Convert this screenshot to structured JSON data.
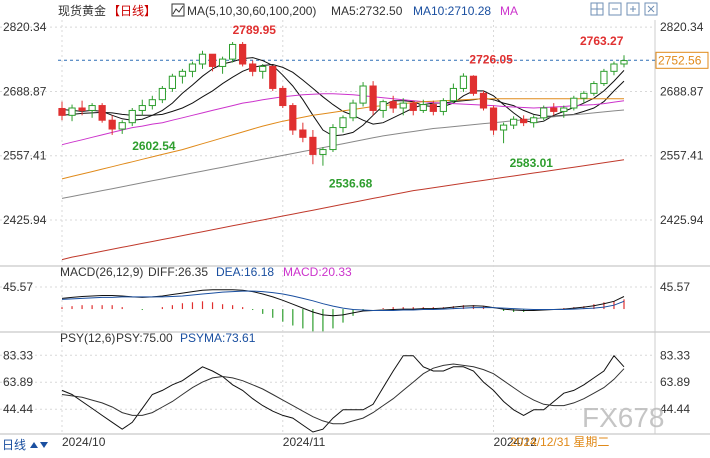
{
  "header": {
    "instrument": "现货黄金",
    "period_tag": "【日线】",
    "ma_label": "MA(5,10,30,60,100,200)",
    "ma5": "MA5:2732.50",
    "ma10": "MA10:2710.28",
    "ma_more": "MA"
  },
  "toolbar": {
    "icons": [
      "grid-icon",
      "minus-box-icon",
      "plus-box-icon",
      "close-box-icon"
    ]
  },
  "macd_header": {
    "label": "MACD(26,12,9)",
    "diff": "DIFF:26.35",
    "dea": "DEA:16.18",
    "macd": "MACD:20.33"
  },
  "psy_header": {
    "label": "PSY(12,6)",
    "psy": "PSY:75.00",
    "psyma": "PSYMA:73.61"
  },
  "bottom": {
    "period": "日线",
    "date_tag": "2024/12/31 星期二",
    "watermark": "FX678"
  },
  "colors": {
    "up": "#2e9e2e",
    "down": "#e03030",
    "ma5": "#111111",
    "ma10": "#111111",
    "ma30": "#cc33cc",
    "ma60": "#e08a1a",
    "ma100": "#888888",
    "ma200": "#c0392b",
    "grid": "#d8d8d8",
    "text": "#333333",
    "accent": "#cc0000",
    "purple": "#cc33cc",
    "blue": "#1a4fa0"
  },
  "chart_data": [
    {
      "type": "candlestick",
      "title": "现货黄金【日线】",
      "y_ticks": [
        "2820.34",
        "2688.87",
        "2557.41",
        "2425.94"
      ],
      "y_range": [
        2340,
        2835
      ],
      "x_ticks": [
        "2024/10",
        "2024/11",
        "2024/12"
      ],
      "current_price": "2752.56",
      "annotations": [
        {
          "label": "2789.95",
          "type": "high"
        },
        {
          "label": "2602.54",
          "type": "low"
        },
        {
          "label": "2536.68",
          "type": "low"
        },
        {
          "label": "2726.05",
          "type": "high"
        },
        {
          "label": "2583.01",
          "type": "low"
        },
        {
          "label": "2763.27",
          "type": "high"
        }
      ],
      "candles": [
        [
          2654,
          2668,
          2630,
          2640
        ],
        [
          2640,
          2662,
          2628,
          2655
        ],
        [
          2655,
          2670,
          2640,
          2650
        ],
        [
          2650,
          2665,
          2635,
          2660
        ],
        [
          2660,
          2665,
          2625,
          2630
        ],
        [
          2630,
          2640,
          2600,
          2612
        ],
        [
          2612,
          2630,
          2602,
          2625
        ],
        [
          2625,
          2655,
          2618,
          2650
        ],
        [
          2650,
          2672,
          2640,
          2660
        ],
        [
          2660,
          2680,
          2652,
          2672
        ],
        [
          2672,
          2700,
          2665,
          2695
        ],
        [
          2695,
          2725,
          2688,
          2720
        ],
        [
          2720,
          2735,
          2705,
          2730
        ],
        [
          2730,
          2750,
          2718,
          2745
        ],
        [
          2745,
          2772,
          2735,
          2765
        ],
        [
          2765,
          2762,
          2730,
          2740
        ],
        [
          2740,
          2760,
          2725,
          2755
        ],
        [
          2755,
          2790,
          2748,
          2785
        ],
        [
          2785,
          2790,
          2740,
          2745
        ],
        [
          2745,
          2752,
          2720,
          2730
        ],
        [
          2730,
          2745,
          2715,
          2740
        ],
        [
          2740,
          2742,
          2690,
          2695
        ],
        [
          2695,
          2700,
          2655,
          2660
        ],
        [
          2660,
          2665,
          2600,
          2610
        ],
        [
          2610,
          2625,
          2585,
          2595
        ],
        [
          2595,
          2610,
          2540,
          2560
        ],
        [
          2560,
          2575,
          2537,
          2570
        ],
        [
          2570,
          2622,
          2565,
          2615
        ],
        [
          2615,
          2640,
          2605,
          2635
        ],
        [
          2635,
          2672,
          2628,
          2665
        ],
        [
          2665,
          2708,
          2658,
          2700
        ],
        [
          2700,
          2710,
          2640,
          2650
        ],
        [
          2650,
          2672,
          2635,
          2668
        ],
        [
          2668,
          2680,
          2645,
          2655
        ],
        [
          2655,
          2675,
          2640,
          2665
        ],
        [
          2665,
          2670,
          2640,
          2650
        ],
        [
          2650,
          2672,
          2645,
          2662
        ],
        [
          2662,
          2670,
          2640,
          2648
        ],
        [
          2648,
          2675,
          2640,
          2670
        ],
        [
          2670,
          2705,
          2665,
          2695
        ],
        [
          2695,
          2726,
          2688,
          2720
        ],
        [
          2720,
          2722,
          2680,
          2685
        ],
        [
          2685,
          2690,
          2650,
          2655
        ],
        [
          2655,
          2660,
          2600,
          2610
        ],
        [
          2610,
          2625,
          2583,
          2620
        ],
        [
          2620,
          2638,
          2612,
          2632
        ],
        [
          2632,
          2640,
          2618,
          2625
        ],
        [
          2625,
          2640,
          2615,
          2635
        ],
        [
          2635,
          2660,
          2630,
          2655
        ],
        [
          2655,
          2665,
          2640,
          2648
        ],
        [
          2648,
          2660,
          2635,
          2655
        ],
        [
          2655,
          2680,
          2650,
          2675
        ],
        [
          2675,
          2690,
          2665,
          2685
        ],
        [
          2685,
          2710,
          2680,
          2705
        ],
        [
          2705,
          2735,
          2700,
          2730
        ],
        [
          2730,
          2750,
          2722,
          2745
        ],
        [
          2745,
          2763,
          2738,
          2752
        ]
      ],
      "ma_series": [
        {
          "name": "MA5",
          "values": [
            2652,
            2650,
            2648,
            2650,
            2648,
            2640,
            2633,
            2630,
            2632,
            2640,
            2650,
            2665,
            2685,
            2702,
            2720,
            2735,
            2745,
            2750,
            2756,
            2758,
            2752,
            2742,
            2722,
            2700,
            2672,
            2640,
            2610,
            2598,
            2600,
            2605,
            2620,
            2640,
            2660,
            2670,
            2670,
            2668,
            2660,
            2658,
            2658,
            2665,
            2680,
            2690,
            2690,
            2680,
            2662,
            2645,
            2630,
            2625,
            2628,
            2640,
            2648,
            2656,
            2665,
            2675,
            2690,
            2710,
            2732
          ]
        },
        {
          "name": "MA10",
          "values": [
            2640,
            2642,
            2644,
            2645,
            2646,
            2645,
            2642,
            2640,
            2640,
            2640,
            2642,
            2648,
            2655,
            2665,
            2678,
            2690,
            2705,
            2718,
            2730,
            2738,
            2742,
            2744,
            2738,
            2728,
            2712,
            2695,
            2678,
            2662,
            2648,
            2640,
            2630,
            2622,
            2625,
            2635,
            2645,
            2655,
            2662,
            2665,
            2665,
            2668,
            2670,
            2672,
            2675,
            2672,
            2665,
            2660,
            2650,
            2642,
            2638,
            2638,
            2640,
            2642,
            2648,
            2655,
            2668,
            2690,
            2710
          ]
        },
        {
          "name": "MA30",
          "values": [
            2580,
            2585,
            2590,
            2595,
            2600,
            2605,
            2610,
            2615,
            2618,
            2622,
            2625,
            2630,
            2635,
            2640,
            2645,
            2650,
            2655,
            2660,
            2665,
            2668,
            2672,
            2675,
            2678,
            2680,
            2682,
            2683,
            2684,
            2684,
            2683,
            2682,
            2680,
            2678,
            2676,
            2674,
            2672,
            2670,
            2668,
            2666,
            2665,
            2664,
            2663,
            2662,
            2661,
            2660,
            2658,
            2657,
            2656,
            2655,
            2656,
            2657,
            2658,
            2660,
            2661,
            2662,
            2664,
            2667,
            2670
          ]
        },
        {
          "name": "MA60",
          "values": [
            2510,
            2515,
            2520,
            2525,
            2530,
            2535,
            2540,
            2545,
            2550,
            2555,
            2560,
            2565,
            2570,
            2576,
            2582,
            2588,
            2594,
            2600,
            2606,
            2612,
            2618,
            2623,
            2628,
            2632,
            2636,
            2640,
            2643,
            2646,
            2649,
            2652,
            2655,
            2658,
            2660,
            2662,
            2664,
            2666,
            2668,
            2669,
            2670,
            2671,
            2672,
            2673,
            2674,
            2674,
            2674,
            2674,
            2674,
            2674,
            2674,
            2674,
            2674,
            2674,
            2674,
            2674,
            2674,
            2674,
            2674
          ]
        },
        {
          "name": "MA100",
          "values": [
            2470,
            2474,
            2478,
            2482,
            2486,
            2490,
            2494,
            2498,
            2502,
            2506,
            2510,
            2514,
            2518,
            2522,
            2526,
            2530,
            2534,
            2538,
            2542,
            2546,
            2550,
            2554,
            2558,
            2562,
            2566,
            2570,
            2574,
            2578,
            2582,
            2586,
            2590,
            2594,
            2598,
            2601,
            2604,
            2607,
            2610,
            2613,
            2615,
            2617,
            2619,
            2621,
            2623,
            2625,
            2627,
            2629,
            2631,
            2633,
            2635,
            2637,
            2639,
            2641,
            2643,
            2645,
            2647,
            2649,
            2651
          ]
        },
        {
          "name": "MA200",
          "values": [
            2345,
            2350,
            2354,
            2358,
            2362,
            2366,
            2370,
            2374,
            2378,
            2382,
            2386,
            2390,
            2394,
            2398,
            2402,
            2406,
            2410,
            2414,
            2418,
            2422,
            2426,
            2430,
            2434,
            2438,
            2442,
            2446,
            2450,
            2454,
            2458,
            2462,
            2466,
            2470,
            2474,
            2478,
            2482,
            2486,
            2489,
            2492,
            2495,
            2498,
            2501,
            2504,
            2507,
            2510,
            2513,
            2516,
            2519,
            2522,
            2525,
            2528,
            2531,
            2534,
            2537,
            2540,
            2543,
            2546,
            2549
          ]
        }
      ]
    },
    {
      "type": "macd",
      "title": "MACD(26,12,9)",
      "y_ticks": [
        "45.57"
      ],
      "y_range": [
        -35,
        60
      ],
      "diff": [
        22,
        24,
        26,
        27,
        28,
        28,
        27,
        25,
        24,
        25,
        27,
        30,
        33,
        36,
        39,
        40,
        40,
        40,
        39,
        36,
        31,
        25,
        18,
        10,
        2,
        -6,
        -12,
        -14,
        -12,
        -8,
        -4,
        -3,
        -2,
        -1,
        0,
        0,
        1,
        1,
        2,
        4,
        6,
        7,
        6,
        3,
        0,
        -2,
        -3,
        -3,
        -2,
        -1,
        0,
        2,
        4,
        7,
        11,
        16,
        26
      ],
      "dea": [
        20,
        21,
        22,
        23,
        24,
        24,
        25,
        25,
        25,
        25,
        25,
        26,
        27,
        29,
        31,
        33,
        35,
        36,
        37,
        37,
        36,
        34,
        31,
        27,
        22,
        17,
        11,
        6,
        2,
        -1,
        -2,
        -3,
        -3,
        -3,
        -2,
        -2,
        -1,
        -1,
        0,
        1,
        2,
        3,
        3,
        3,
        2,
        1,
        0,
        -1,
        -1,
        -1,
        -1,
        0,
        1,
        2,
        4,
        8,
        16
      ],
      "macd": [
        4,
        6,
        8,
        8,
        8,
        8,
        4,
        0,
        -2,
        0,
        4,
        8,
        12,
        14,
        16,
        14,
        10,
        8,
        4,
        -2,
        -10,
        -18,
        -26,
        -34,
        -40,
        -46,
        -46,
        -40,
        -28,
        -14,
        -4,
        0,
        2,
        4,
        4,
        4,
        4,
        4,
        4,
        6,
        8,
        8,
        6,
        0,
        -4,
        -6,
        -6,
        -4,
        -2,
        0,
        2,
        4,
        6,
        10,
        14,
        16,
        20
      ]
    },
    {
      "type": "line",
      "title": "PSY(12,6)",
      "y_ticks": [
        "83.33",
        "63.89",
        "44.44"
      ],
      "y_range": [
        28,
        90
      ],
      "psy": [
        58,
        55,
        50,
        45,
        40,
        35,
        30,
        35,
        45,
        55,
        58,
        62,
        65,
        70,
        75,
        72,
        68,
        62,
        58,
        52,
        47,
        43,
        40,
        38,
        33,
        28,
        30,
        38,
        44,
        44,
        44,
        48,
        60,
        72,
        83,
        83,
        75,
        72,
        72,
        75,
        75,
        72,
        64,
        58,
        50,
        44,
        40,
        44,
        44,
        50,
        56,
        58,
        62,
        67,
        72,
        83,
        75
      ],
      "psyma": [
        55,
        54,
        53,
        51,
        49,
        46,
        42,
        40,
        40,
        42,
        46,
        50,
        55,
        60,
        64,
        67,
        68,
        67,
        65,
        62,
        59,
        55,
        51,
        47,
        43,
        39,
        36,
        34,
        34,
        36,
        38,
        42,
        47,
        52,
        58,
        64,
        70,
        74,
        76,
        77,
        76,
        75,
        73,
        70,
        65,
        60,
        55,
        51,
        48,
        47,
        47,
        49,
        52,
        56,
        60,
        66,
        73.61
      ]
    }
  ]
}
